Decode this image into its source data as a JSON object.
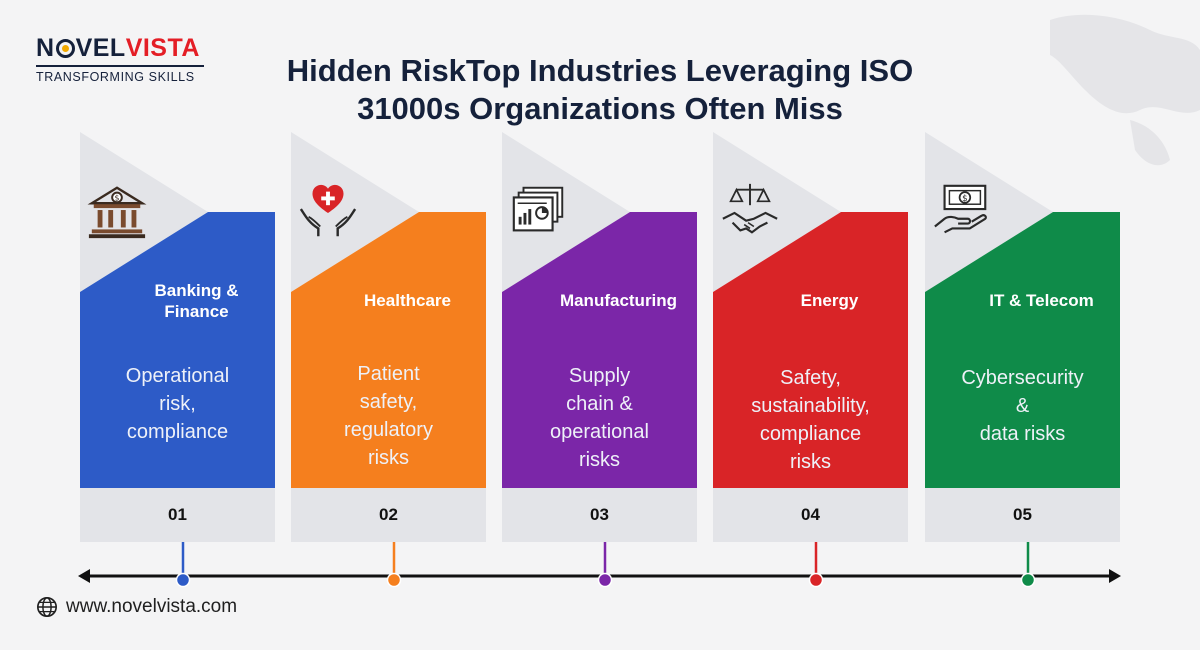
{
  "logo": {
    "novel": "N",
    "novel_rest": "VEL",
    "vista": "VISTA",
    "tagline": "TRANSFORMING SKILLS"
  },
  "title": {
    "line1": "Hidden RiskTop Industries Leveraging ISO",
    "line2": "31000s Organizations Often Miss"
  },
  "cards": [
    {
      "heading": "Banking & Finance",
      "desc": "Operational risk, compliance",
      "desc_lines": [
        "Operational",
        "risk,",
        "compliance"
      ],
      "number": "01",
      "color": "#2d5bc7",
      "icon": "bank-icon"
    },
    {
      "heading": "Healthcare",
      "desc": "Patient safety, regulatory risks",
      "desc_lines": [
        "Patient",
        "safety,",
        "regulatory",
        "risks"
      ],
      "number": "02",
      "color": "#f57f1e",
      "icon": "heart-hands-icon"
    },
    {
      "heading": "Manufacturing",
      "desc": "Supply chain & operational risks",
      "desc_lines": [
        "Supply",
        "chain &",
        "operational",
        "risks"
      ],
      "number": "03",
      "color": "#7b26a8",
      "icon": "report-chart-icon"
    },
    {
      "heading": "Energy",
      "desc": "Safety, sustainability, compliance risks",
      "desc_lines": [
        "Safety,",
        "sustainability,",
        "compliance",
        "risks"
      ],
      "number": "04",
      "color": "#d92427",
      "icon": "scales-handshake-icon"
    },
    {
      "heading": "IT & Telecom",
      "desc": "Cybersecurity & data risks",
      "desc_lines": [
        "Cybersecurity",
        "&",
        "data risks"
      ],
      "number": "05",
      "color": "#0f8b49",
      "icon": "money-hand-icon"
    }
  ],
  "footer": {
    "website": "www.novelvista.com"
  }
}
